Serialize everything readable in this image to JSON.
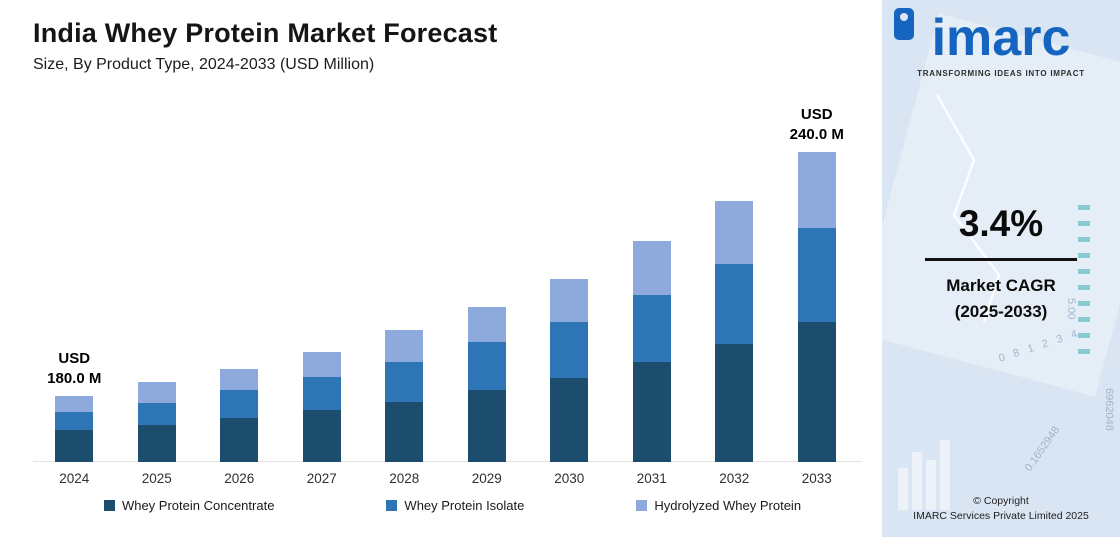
{
  "header": {
    "title": "India Whey Protein Market Forecast",
    "subtitle": "Size, By Product Type, 2024-2033 (USD Million)"
  },
  "chart_data": {
    "type": "bar",
    "stacked": true,
    "title": "India Whey Protein Market Forecast",
    "subtitle": "Size, By Product Type, 2024-2033 (USD Million)",
    "categories": [
      "2024",
      "2025",
      "2026",
      "2027",
      "2028",
      "2029",
      "2030",
      "2031",
      "2032",
      "2033"
    ],
    "series": [
      {
        "name": "Whey Protein Concentrate",
        "color": "#1d4d6d",
        "values": [
          32,
          37,
          44,
          52,
          60,
          72,
          84,
          100,
          118,
          140
        ]
      },
      {
        "name": "Whey Protein Isolate",
        "color": "#2e75b6",
        "values": [
          18,
          22,
          28,
          33,
          40,
          48,
          56,
          67,
          80,
          94
        ]
      },
      {
        "name": "Hydrolyzed Whey Protein",
        "color": "#8ea9dc",
        "values": [
          16,
          21,
          21,
          25,
          32,
          35,
          43,
          54,
          63,
          76
        ]
      }
    ],
    "values_unit": "relative visual bar height (no y-axis shown)",
    "labeled_totals": {
      "2024": "USD 180.0 M",
      "2033": "USD 240.0 M"
    },
    "annotations": [
      {
        "category": "2024",
        "lines": [
          "USD",
          "180.0 M"
        ]
      },
      {
        "category": "2033",
        "lines": [
          "USD",
          "240.0 M"
        ]
      }
    ],
    "legend_position": "bottom",
    "grid": false
  },
  "sidebar": {
    "logo_text": "imarc",
    "tagline": "TRANSFORMING IDEAS INTO IMPACT",
    "cagr_value": "3.4%",
    "cagr_label": "Market CAGR",
    "cagr_period": "(2025-2033)",
    "copyright_line1": "© Copyright",
    "copyright_line2": "IMARC Services Private Limited 2025",
    "decor_numbers": {
      "n1": "6962048",
      "n2": "0.1652948",
      "n3": "0 8 1 2 3 4",
      "n4": "5.00"
    }
  }
}
